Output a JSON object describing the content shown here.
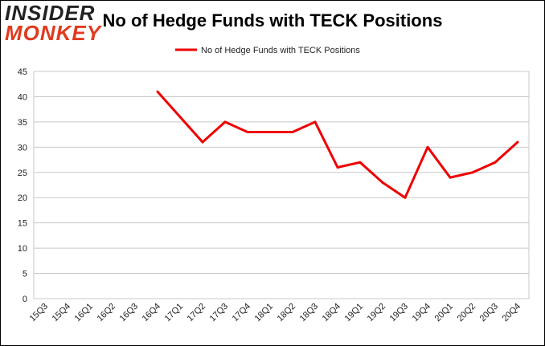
{
  "logo": {
    "line1": "INSIDER",
    "line2": "MONKEY"
  },
  "colors": {
    "series": "#ee0000",
    "grid": "#c8c8c8",
    "logo_accent": "#e03a1e"
  },
  "chart_data": {
    "type": "line",
    "title": "No of Hedge Funds with TECK Positions",
    "xlabel": "",
    "ylabel": "",
    "ylim": [
      0,
      45
    ],
    "yticks": [
      0,
      5,
      10,
      15,
      20,
      25,
      30,
      35,
      40,
      45
    ],
    "grid": true,
    "legend_position": "top-center",
    "categories": [
      "15Q3",
      "15Q4",
      "16Q1",
      "16Q2",
      "16Q3",
      "16Q4",
      "17Q1",
      "17Q2",
      "17Q3",
      "17Q4",
      "18Q1",
      "18Q2",
      "18Q3",
      "18Q4",
      "19Q1",
      "19Q2",
      "19Q3",
      "19Q4",
      "20Q1",
      "20Q2",
      "20Q3",
      "20Q4"
    ],
    "series": [
      {
        "name": "No of Hedge Funds with TECK Positions",
        "values": [
          null,
          null,
          null,
          null,
          null,
          41,
          36,
          31,
          35,
          33,
          33,
          33,
          35,
          26,
          27,
          23,
          20,
          30,
          24,
          25,
          27,
          31
        ]
      }
    ]
  }
}
